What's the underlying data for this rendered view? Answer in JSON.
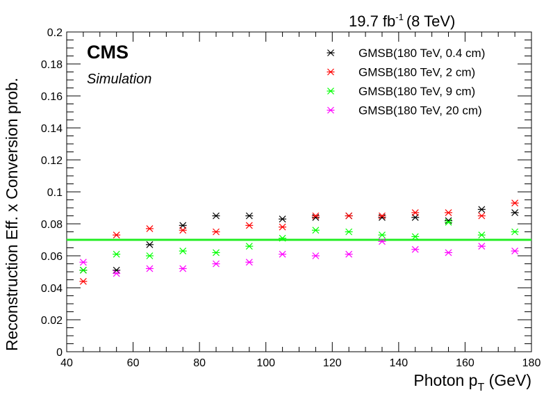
{
  "header": {
    "lumi_value": "19.7 fb",
    "lumi_exponent": "-1",
    "lumi_energy": "(8 TeV)"
  },
  "labels": {
    "experiment": "CMS",
    "status": "Simulation"
  },
  "chart_data": {
    "type": "scatter",
    "xlabel_main": "Photon p",
    "xlabel_sub": "T",
    "xlabel_unit": " (GeV)",
    "ylabel": "Reconstruction Eff. x Conversion prob.",
    "xlim": [
      40,
      180
    ],
    "ylim": [
      0,
      0.2
    ],
    "x_ticks": [
      40,
      60,
      80,
      100,
      120,
      140,
      160,
      180
    ],
    "y_ticks": [
      0,
      0.02,
      0.04,
      0.06,
      0.08,
      0.1,
      0.12,
      0.14,
      0.16,
      0.18,
      0.2
    ],
    "y_tick_labels": [
      "0",
      "0.02",
      "0.04",
      "0.06",
      "0.08",
      "0.1",
      "0.12",
      "0.14",
      "0.16",
      "0.18",
      "0.2"
    ],
    "x": [
      45,
      55,
      65,
      75,
      85,
      95,
      105,
      115,
      125,
      135,
      145,
      155,
      165,
      175
    ],
    "series": [
      {
        "name": "GMSB(180 TeV, 0.4 cm)",
        "color": "#000000",
        "values": [
          0.051,
          0.051,
          0.067,
          0.079,
          0.085,
          0.085,
          0.083,
          0.084,
          0.085,
          0.084,
          0.084,
          0.082,
          0.089,
          0.087
        ]
      },
      {
        "name": "GMSB(180 TeV, 2 cm)",
        "color": "#ff0000",
        "values": [
          0.044,
          0.073,
          0.077,
          0.076,
          0.075,
          0.079,
          0.078,
          0.085,
          0.085,
          0.085,
          0.087,
          0.087,
          0.085,
          0.093
        ]
      },
      {
        "name": "GMSB(180 TeV, 9 cm)",
        "color": "#00ff00",
        "values": [
          0.051,
          0.061,
          0.06,
          0.063,
          0.062,
          0.066,
          0.071,
          0.076,
          0.075,
          0.073,
          0.072,
          0.081,
          0.073,
          0.075
        ]
      },
      {
        "name": "GMSB(180 TeV, 20 cm)",
        "color": "#ff00ff",
        "values": [
          0.056,
          0.049,
          0.052,
          0.052,
          0.055,
          0.056,
          0.061,
          0.06,
          0.061,
          0.069,
          0.064,
          0.062,
          0.066,
          0.063
        ]
      }
    ],
    "reference_line": {
      "y": 0.07,
      "color": "#22ee22"
    },
    "legend_position": "top-right",
    "grid": false
  }
}
